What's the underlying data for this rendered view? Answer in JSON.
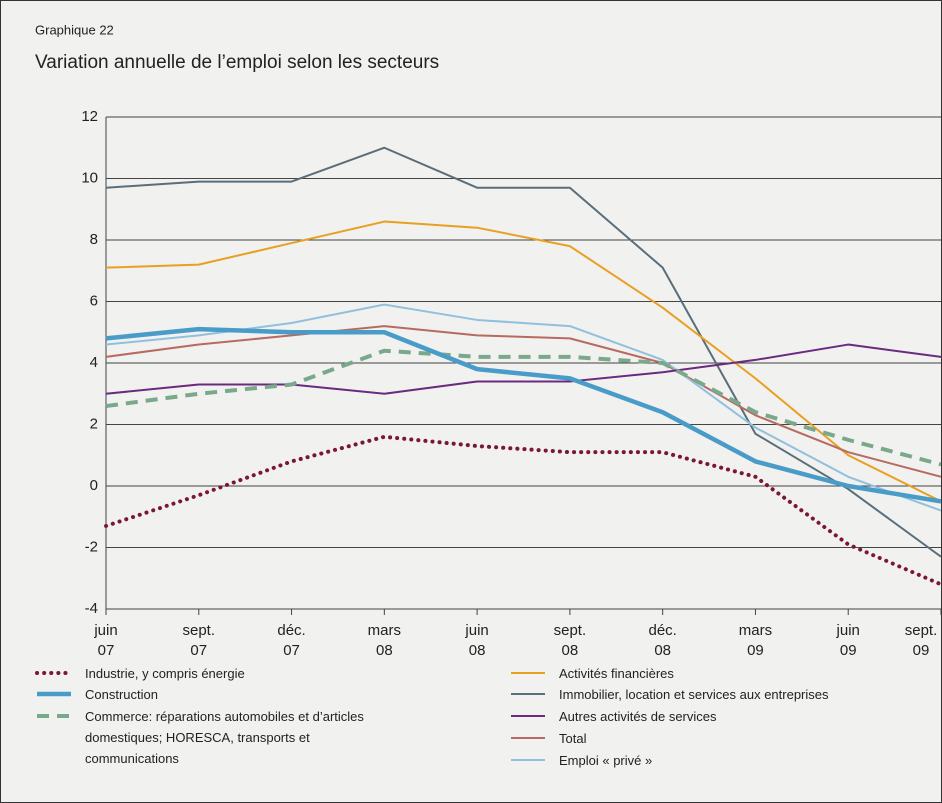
{
  "chart_data": {
    "type": "line",
    "supertitle": "Graphique 22",
    "title": "Variation annuelle de l’emploi selon les secteurs",
    "categories": [
      "juin 07",
      "sept. 07",
      "déc. 07",
      "mars 08",
      "juin 08",
      "sept. 08",
      "déc. 08",
      "mars 09",
      "juin 09",
      "sept. 09"
    ],
    "ylim": [
      -4,
      12
    ],
    "yticks": [
      -4,
      -2,
      0,
      2,
      4,
      6,
      8,
      10,
      12
    ],
    "grid": true,
    "series": [
      {
        "name": "Industrie, y compris énergie",
        "color": "#7b1730",
        "style": "dotted",
        "values": [
          -1.3,
          -0.3,
          0.8,
          1.6,
          1.3,
          1.1,
          1.1,
          0.3,
          -1.9,
          -3.2
        ]
      },
      {
        "name": "Construction",
        "color": "#4a9cc8",
        "style": "thick",
        "values": [
          4.8,
          5.1,
          5.0,
          5.0,
          3.8,
          3.5,
          2.4,
          0.8,
          0.0,
          -0.5
        ]
      },
      {
        "name": "Commerce: réparations automobiles et d’articles domestiques; HORESCA, transports et communications",
        "color": "#7aa88a",
        "style": "dashed",
        "values": [
          2.6,
          3.0,
          3.3,
          4.4,
          4.2,
          4.2,
          4.0,
          2.4,
          1.5,
          0.7
        ]
      },
      {
        "name": "Activités financières",
        "color": "#e8a020",
        "style": "solid",
        "values": [
          7.1,
          7.2,
          7.9,
          8.6,
          8.4,
          7.8,
          5.8,
          3.5,
          1.0,
          -0.5
        ]
      },
      {
        "name": "Immobilier, location et services aux entreprises",
        "color": "#5a6e7a",
        "style": "solid",
        "values": [
          9.7,
          9.9,
          9.9,
          11.0,
          9.7,
          9.7,
          7.1,
          1.7,
          -0.1,
          -2.3
        ]
      },
      {
        "name": "Autres activités de services",
        "color": "#6a2a80",
        "style": "solid",
        "values": [
          3.0,
          3.3,
          3.3,
          3.0,
          3.4,
          3.4,
          3.7,
          4.1,
          4.6,
          4.2
        ]
      },
      {
        "name": "Total",
        "color": "#b86a60",
        "style": "solid",
        "values": [
          4.2,
          4.6,
          4.9,
          5.2,
          4.9,
          4.8,
          4.0,
          2.3,
          1.1,
          0.3
        ]
      },
      {
        "name": "Emploi « privé »",
        "color": "#90c0dd",
        "style": "solid",
        "values": [
          4.6,
          4.9,
          5.3,
          5.9,
          5.4,
          5.2,
          4.1,
          1.9,
          0.3,
          -0.8
        ]
      }
    ]
  }
}
